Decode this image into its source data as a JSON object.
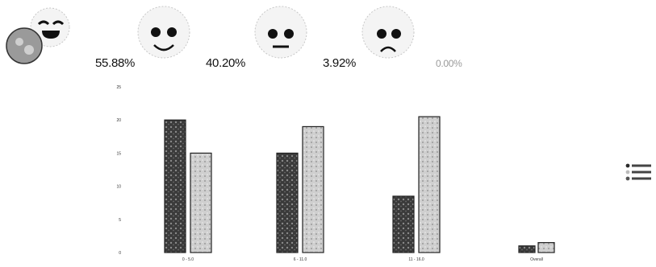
{
  "summary": {
    "faces": [
      {
        "icon": "laughing-face-icon",
        "percent": "55.88%"
      },
      {
        "icon": "smiling-face-icon",
        "percent": "40.20%"
      },
      {
        "icon": "neutral-face-icon",
        "percent": "3.92%"
      },
      {
        "icon": "sad-face-icon",
        "percent": "0.00%"
      }
    ]
  },
  "chart_data": {
    "type": "bar",
    "categories": [
      "0 - 5.0",
      "6 - 11.0",
      "11 - 16.0",
      "Overall"
    ],
    "series": [
      {
        "name": "",
        "color": "#2a2a2a",
        "values": [
          20,
          15,
          8.5,
          1
        ]
      },
      {
        "name": "",
        "color": "#bcbcbc",
        "values": [
          15,
          19,
          20.5,
          1.5
        ]
      }
    ],
    "y_ticks": [
      "0",
      "5",
      "10",
      "15",
      "20",
      "25"
    ],
    "ylim": [
      0,
      25
    ],
    "ylabel": "",
    "xlabel": "",
    "legend_position": "right",
    "grid": false
  }
}
